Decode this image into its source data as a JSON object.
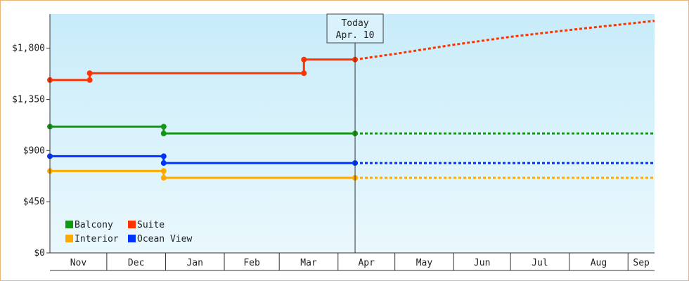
{
  "chart_data": {
    "type": "line",
    "title": "",
    "xlabel": "",
    "ylabel": "",
    "x_tick_labels": [
      "Nov",
      "Dec",
      "Jan",
      "Feb",
      "Mar",
      "Apr",
      "May",
      "Jun",
      "Jul",
      "Aug",
      "Sep"
    ],
    "y_ticks": [
      {
        "value": 0,
        "label": "$0"
      },
      {
        "value": 450,
        "label": "$450"
      },
      {
        "value": 900,
        "label": "$900"
      },
      {
        "value": 1350,
        "label": "$1,350"
      },
      {
        "value": 1800,
        "label": "$1,800"
      }
    ],
    "ylim": [
      0,
      2100
    ],
    "xlim": [
      "2023-11-01",
      "2024-09-15"
    ],
    "today": {
      "title": "Today",
      "date_label": "Apr. 10",
      "date": "2024-04-10"
    },
    "legend_position": "bottom-left",
    "grid": false,
    "series": [
      {
        "name": "Balcony",
        "color": "#119911",
        "line_style": "step",
        "points": [
          [
            "2023-11-01",
            1110
          ],
          [
            "2023-12-31",
            1110
          ],
          [
            "2023-12-31",
            1050
          ],
          [
            "2024-04-10",
            1050
          ]
        ],
        "forecast": [
          [
            "2024-04-10",
            1050
          ],
          [
            "2024-09-15",
            1050
          ]
        ]
      },
      {
        "name": "Suite",
        "color": "#ff3300",
        "line_style": "step",
        "points": [
          [
            "2023-11-01",
            1520
          ],
          [
            "2023-11-22",
            1520
          ],
          [
            "2023-11-22",
            1580
          ],
          [
            "2024-03-14",
            1580
          ],
          [
            "2024-03-14",
            1700
          ],
          [
            "2024-04-10",
            1700
          ]
        ],
        "forecast": [
          [
            "2024-04-10",
            1700
          ],
          [
            "2024-05-01",
            1750
          ],
          [
            "2024-06-01",
            1830
          ],
          [
            "2024-07-01",
            1900
          ],
          [
            "2024-08-01",
            1960
          ],
          [
            "2024-09-15",
            2040
          ]
        ]
      },
      {
        "name": "Interior",
        "color": "#ffaa00",
        "line_style": "step",
        "points": [
          [
            "2023-11-01",
            720
          ],
          [
            "2023-12-31",
            720
          ],
          [
            "2023-12-31",
            660
          ],
          [
            "2024-04-10",
            660
          ]
        ],
        "forecast": [
          [
            "2024-04-10",
            660
          ],
          [
            "2024-09-15",
            660
          ]
        ]
      },
      {
        "name": "Ocean View",
        "color": "#0033ff",
        "line_style": "step",
        "points": [
          [
            "2023-11-01",
            850
          ],
          [
            "2023-12-31",
            850
          ],
          [
            "2023-12-31",
            790
          ],
          [
            "2024-04-10",
            790
          ]
        ],
        "forecast": [
          [
            "2024-04-10",
            790
          ],
          [
            "2024-09-15",
            790
          ]
        ]
      }
    ]
  }
}
